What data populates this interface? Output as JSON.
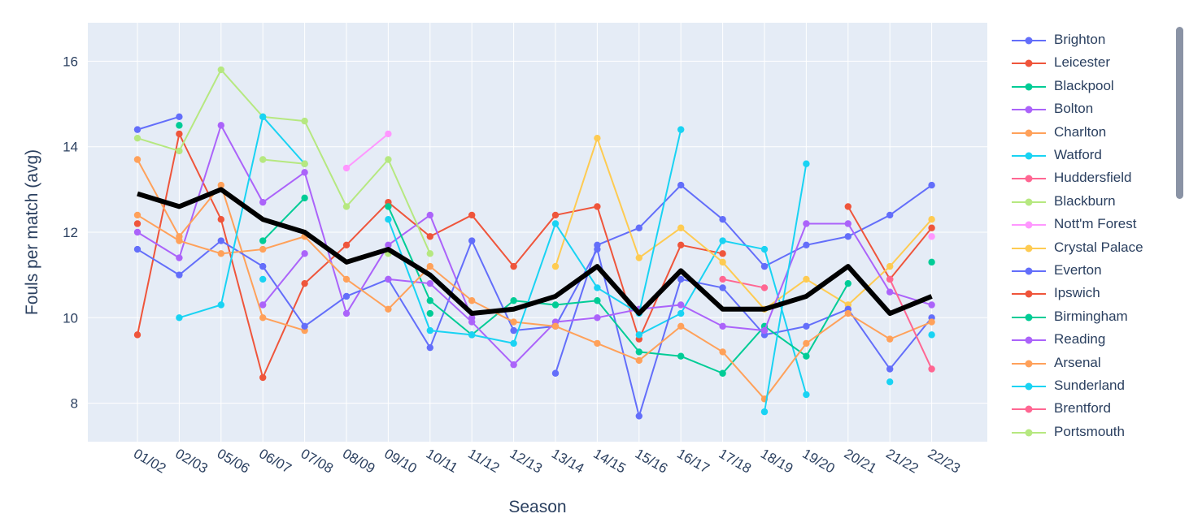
{
  "chart_data": {
    "type": "line",
    "xlabel": "Season",
    "ylabel": "Fouls per match (avg)",
    "categories": [
      "01/02",
      "02/03",
      "05/06",
      "06/07",
      "07/08",
      "08/09",
      "09/10",
      "10/11",
      "11/12",
      "12/13",
      "13/14",
      "14/15",
      "15/16",
      "16/17",
      "17/18",
      "18/19",
      "19/20",
      "20/21",
      "21/22",
      "22/23"
    ],
    "ylim": [
      7.1,
      16.9
    ],
    "yticks": [
      8,
      10,
      12,
      14,
      16
    ],
    "grid": true,
    "legend_position": "right",
    "series": [
      {
        "name": "Brighton",
        "color": "#636efa",
        "values": [
          14.4,
          14.7,
          null,
          null,
          null,
          null,
          null,
          null,
          null,
          null,
          8.7,
          11.7,
          12.1,
          13.1,
          12.3,
          11.2,
          11.7,
          11.9,
          12.4,
          13.1
        ]
      },
      {
        "name": "Leicester",
        "color": "#ef553b",
        "values": [
          9.6,
          14.3,
          12.3,
          8.6,
          10.8,
          11.7,
          12.7,
          11.9,
          12.4,
          11.2,
          12.4,
          12.6,
          9.5,
          11.7,
          11.5,
          null,
          null,
          12.6,
          10.9,
          12.1
        ]
      },
      {
        "name": "Blackpool",
        "color": "#00cc96",
        "values": [
          null,
          null,
          null,
          null,
          null,
          null,
          null,
          10.1,
          null,
          null,
          null,
          null,
          null,
          null,
          null,
          null,
          null,
          null,
          null,
          null
        ]
      },
      {
        "name": "Bolton",
        "color": "#ab63fa",
        "values": [
          12.0,
          11.4,
          14.5,
          12.7,
          13.4,
          10.1,
          11.7,
          12.4,
          10.0,
          null,
          null,
          null,
          null,
          null,
          null,
          null,
          null,
          null,
          null,
          null
        ]
      },
      {
        "name": "Charlton",
        "color": "#ffa15a",
        "values": [
          13.7,
          11.9,
          13.1,
          10.0,
          9.7,
          null,
          null,
          null,
          null,
          null,
          null,
          null,
          null,
          null,
          null,
          null,
          null,
          null,
          null,
          null
        ]
      },
      {
        "name": "Watford",
        "color": "#19d3f3",
        "values": [
          null,
          null,
          null,
          10.9,
          null,
          null,
          null,
          null,
          null,
          null,
          null,
          null,
          9.6,
          10.1,
          11.8,
          11.6,
          8.2,
          null,
          8.5,
          null
        ]
      },
      {
        "name": "Huddersfield",
        "color": "#ff6692",
        "values": [
          null,
          null,
          null,
          null,
          null,
          null,
          null,
          null,
          null,
          null,
          null,
          null,
          null,
          null,
          10.9,
          10.7,
          null,
          null,
          null,
          null
        ]
      },
      {
        "name": "Blackburn",
        "color": "#b6e880",
        "values": [
          14.2,
          13.9,
          15.8,
          14.7,
          14.6,
          12.6,
          13.7,
          11.5,
          null,
          null,
          null,
          null,
          null,
          null,
          null,
          null,
          null,
          null,
          null,
          null
        ]
      },
      {
        "name": "Nott'm Forest",
        "color": "#ff97ff",
        "values": [
          null,
          null,
          null,
          null,
          null,
          13.5,
          14.3,
          null,
          null,
          null,
          null,
          null,
          null,
          null,
          null,
          null,
          null,
          null,
          null,
          11.9
        ]
      },
      {
        "name": "Crystal Palace",
        "color": "#fecb52",
        "values": [
          null,
          null,
          null,
          null,
          null,
          null,
          null,
          null,
          null,
          null,
          11.2,
          14.2,
          11.4,
          12.1,
          11.3,
          10.2,
          10.9,
          10.3,
          11.2,
          12.3
        ]
      },
      {
        "name": "Everton",
        "color": "#636efa",
        "values": [
          11.6,
          11.0,
          11.8,
          11.2,
          9.8,
          10.5,
          10.9,
          9.3,
          11.8,
          9.7,
          9.8,
          11.6,
          7.7,
          10.9,
          10.7,
          9.6,
          9.8,
          10.2,
          8.8,
          10.0
        ]
      },
      {
        "name": "Ipswich",
        "color": "#ef553b",
        "values": [
          12.2,
          null,
          null,
          null,
          null,
          null,
          null,
          null,
          null,
          null,
          null,
          null,
          null,
          null,
          null,
          null,
          null,
          null,
          null,
          null
        ]
      },
      {
        "name": "Birmingham",
        "color": "#00cc96",
        "values": [
          null,
          14.5,
          null,
          11.8,
          12.8,
          null,
          12.6,
          10.4,
          9.6,
          10.4,
          10.3,
          10.4,
          9.2,
          9.1,
          8.7,
          9.8,
          9.1,
          10.8,
          null,
          11.3
        ]
      },
      {
        "name": "Reading",
        "color": "#ab63fa",
        "values": [
          null,
          null,
          null,
          10.3,
          11.5,
          null,
          10.9,
          10.8,
          9.9,
          8.9,
          9.9,
          10.0,
          10.2,
          10.3,
          9.8,
          9.7,
          12.2,
          12.2,
          10.6,
          10.3
        ]
      },
      {
        "name": "Arsenal",
        "color": "#ffa15a",
        "values": [
          12.4,
          11.8,
          11.5,
          11.6,
          11.9,
          10.9,
          10.2,
          11.2,
          10.4,
          9.9,
          9.8,
          9.4,
          9.0,
          9.8,
          9.2,
          8.1,
          9.4,
          10.1,
          9.5,
          9.9
        ]
      },
      {
        "name": "Sunderland",
        "color": "#19d3f3",
        "values": [
          null,
          10.0,
          10.3,
          14.7,
          13.6,
          null,
          12.3,
          9.7,
          9.6,
          9.4,
          12.2,
          10.7,
          10.1,
          14.4,
          null,
          7.8,
          13.6,
          null,
          null,
          9.6
        ]
      },
      {
        "name": "Brentford",
        "color": "#ff6692",
        "values": [
          null,
          null,
          null,
          null,
          null,
          null,
          null,
          null,
          null,
          null,
          null,
          null,
          null,
          null,
          null,
          null,
          null,
          null,
          10.9,
          8.8
        ]
      },
      {
        "name": "Portsmouth",
        "color": "#b6e880",
        "values": [
          null,
          null,
          null,
          13.7,
          13.6,
          null,
          11.5,
          null,
          null,
          null,
          null,
          null,
          null,
          null,
          null,
          null,
          null,
          null,
          null,
          null
        ]
      }
    ],
    "average": {
      "color": "#000000",
      "values": [
        12.9,
        12.6,
        13.0,
        12.3,
        12.0,
        11.3,
        11.6,
        11.0,
        10.1,
        10.2,
        10.5,
        11.2,
        10.1,
        11.1,
        10.2,
        10.2,
        10.5,
        11.2,
        10.1,
        10.5
      ]
    }
  },
  "legend": {
    "items": [
      {
        "label": "Brighton",
        "color": "#636efa"
      },
      {
        "label": "Leicester",
        "color": "#ef553b"
      },
      {
        "label": "Blackpool",
        "color": "#00cc96"
      },
      {
        "label": "Bolton",
        "color": "#ab63fa"
      },
      {
        "label": "Charlton",
        "color": "#ffa15a"
      },
      {
        "label": "Watford",
        "color": "#19d3f3"
      },
      {
        "label": "Huddersfield",
        "color": "#ff6692"
      },
      {
        "label": "Blackburn",
        "color": "#b6e880"
      },
      {
        "label": "Nott'm Forest",
        "color": "#ff97ff"
      },
      {
        "label": "Crystal Palace",
        "color": "#fecb52"
      },
      {
        "label": "Everton",
        "color": "#636efa"
      },
      {
        "label": "Ipswich",
        "color": "#ef553b"
      },
      {
        "label": "Birmingham",
        "color": "#00cc96"
      },
      {
        "label": "Reading",
        "color": "#ab63fa"
      },
      {
        "label": "Arsenal",
        "color": "#ffa15a"
      },
      {
        "label": "Sunderland",
        "color": "#19d3f3"
      },
      {
        "label": "Brentford",
        "color": "#ff6692"
      },
      {
        "label": "Portsmouth",
        "color": "#b6e880"
      }
    ]
  },
  "colors": {
    "plot_bg": "#e5ecf6",
    "grid": "#ffffff",
    "text": "#2a3f5f",
    "scrollbar": "#8a93a5"
  }
}
